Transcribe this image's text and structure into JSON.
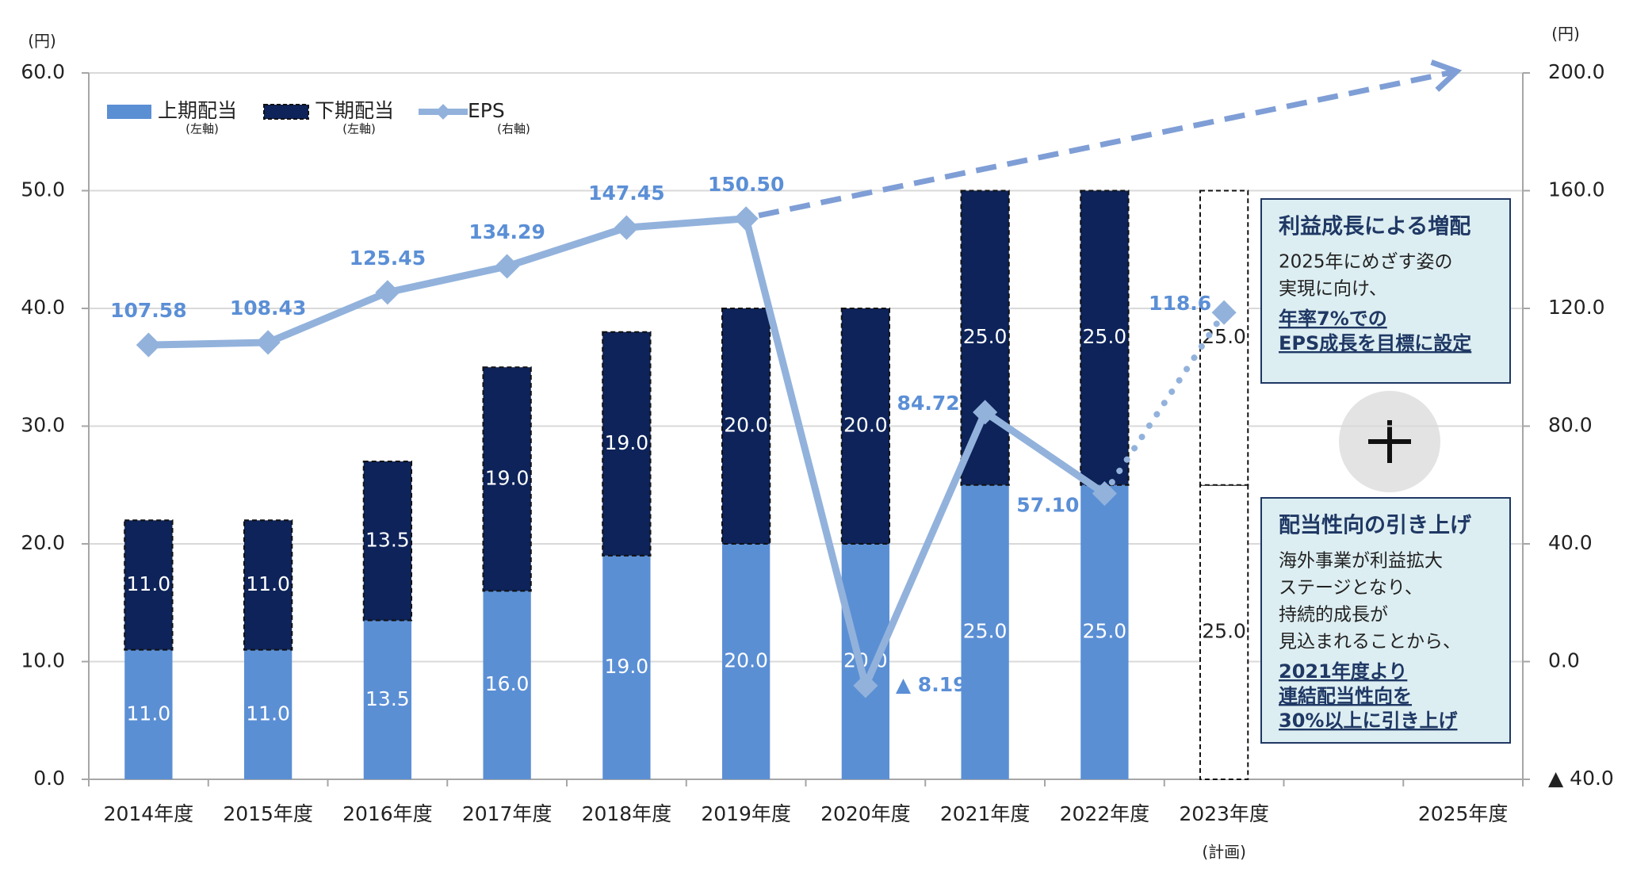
{
  "chart_data": {
    "type": "combo",
    "ylabel": "(円)",
    "y2label": "(円)",
    "categories": [
      "2014年度",
      "2015年度",
      "2016年度",
      "2017年度",
      "2018年度",
      "2019年度",
      "2020年度",
      "2021年度",
      "2022年度",
      "2023年度",
      null,
      "2025年度"
    ],
    "planned_categories": [
      "2023年度"
    ],
    "planned_note": "(計画)",
    "series": [
      {
        "name": "上期配当",
        "legend_note": "(左軸)",
        "color": "#5b8fd4",
        "label_color": "#ffffff",
        "values": [
          11,
          11,
          13.5,
          16,
          19,
          20,
          20,
          25,
          25,
          25,
          null,
          null
        ],
        "value_labels": [
          "11.0",
          "11.0",
          "13.5",
          "16.0",
          "19.0",
          "20.0",
          "20.0",
          "25.0",
          "25.0",
          "25.0",
          null,
          null
        ]
      },
      {
        "name": "下期配当",
        "legend_note": "(左軸)",
        "color": "#0d2359",
        "label_color": "#ffffff",
        "values": [
          11,
          11,
          13.5,
          19,
          19,
          20,
          20,
          25,
          25,
          25,
          null,
          null
        ],
        "value_labels": [
          "11.0",
          "11.0",
          "13.5",
          "19.0",
          "19.0",
          "20.0",
          "20.0",
          "25.0",
          "25.0",
          "25.0",
          null,
          null
        ]
      },
      {
        "name": "EPS",
        "legend_note": "(右軸)",
        "color": "#92b2dc",
        "label_color": "#5b8fd6",
        "axis": "y2",
        "values": [
          107.58,
          108.43,
          125.45,
          134.29,
          147.45,
          150.5,
          -8.19,
          84.72,
          57.1,
          118.6,
          null,
          null
        ],
        "value_labels": [
          "107.58",
          "108.43",
          "125.45",
          "134.29",
          "147.45",
          "150.50",
          "▲ 8.19",
          "84.72",
          "57.10",
          "118.6",
          null,
          null
        ]
      }
    ],
    "ylim": [
      0,
      60
    ],
    "yticks": [
      {
        "value": 0,
        "label": "0.0"
      },
      {
        "value": 10,
        "label": "10.0"
      },
      {
        "value": 20,
        "label": "20.0"
      },
      {
        "value": 30,
        "label": "30.0"
      },
      {
        "value": 40,
        "label": "40.0"
      },
      {
        "value": 50,
        "label": "50.0"
      },
      {
        "value": 60,
        "label": "60.0"
      }
    ],
    "y2lim": [
      -40,
      200
    ],
    "y2ticks": [
      {
        "value": -40,
        "label": "▲ 40.0"
      },
      {
        "value": 0,
        "label": "0.0"
      },
      {
        "value": 40,
        "label": "40.0"
      },
      {
        "value": 80,
        "label": "80.0"
      },
      {
        "value": 120,
        "label": "120.0"
      },
      {
        "value": 160,
        "label": "160.0"
      },
      {
        "value": 200,
        "label": "200.0"
      }
    ],
    "grid": true,
    "annotations": [
      {
        "title": "利益成長による増配",
        "lines": [
          "2025年にめざす姿の",
          "実現に向け、"
        ],
        "emphasis": [
          "年率7%での",
          "EPS成長を目標に設定"
        ]
      },
      {
        "title": "配当性向の引き上げ",
        "lines": [
          "海外事業が利益拡大",
          "ステージとなり、",
          "持続的成長が",
          "見込まれることから、"
        ],
        "emphasis": [
          "2021年度より",
          "連結配当性向を",
          "30%以上に引き上げ"
        ]
      }
    ]
  }
}
